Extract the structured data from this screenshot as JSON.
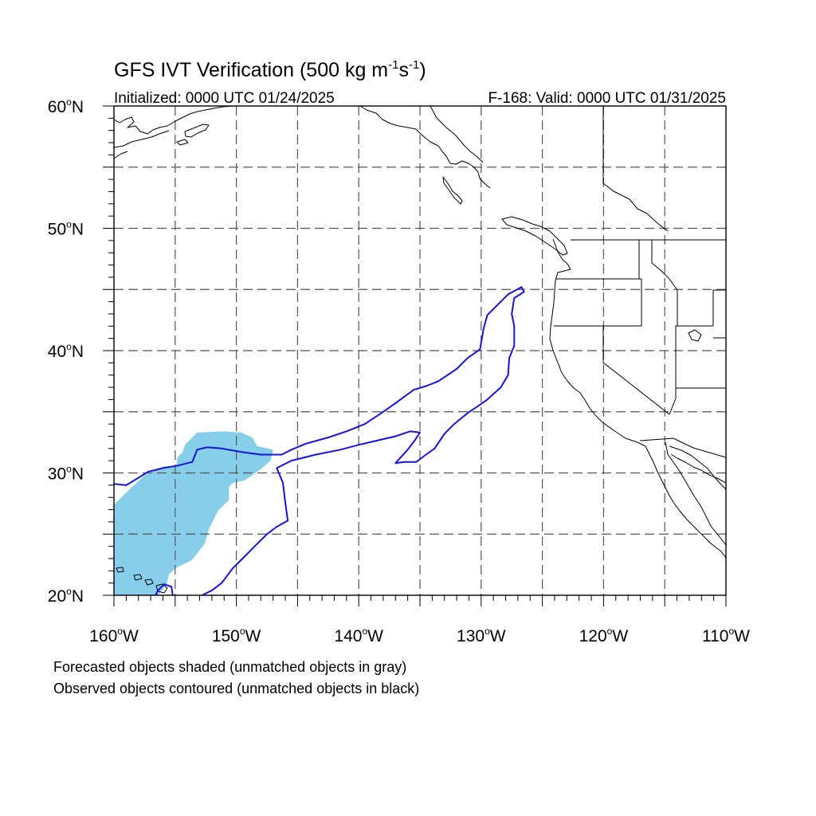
{
  "title": {
    "main": "GFS IVT Verification (500 kg m",
    "sup1": "-1",
    "mid": "s",
    "sup2": "-1",
    "end": ")"
  },
  "subtitle_left": "Initialized: 0000 UTC 01/24/2025",
  "subtitle_right": "F-168: Valid: 0000 UTC 01/31/2025",
  "map": {
    "lon_range": [
      -160,
      -110
    ],
    "lat_range": [
      20,
      60
    ],
    "major_gridlines": {
      "lon": [
        -155,
        -150,
        -145,
        -140,
        -135,
        -130,
        -125,
        -120,
        -115
      ],
      "lat": [
        25,
        30,
        35,
        40,
        45,
        50,
        55
      ]
    },
    "lat_labels": [
      {
        "lat": 60,
        "text": "60",
        "suffix": "N"
      },
      {
        "lat": 50,
        "text": "50",
        "suffix": "N"
      },
      {
        "lat": 40,
        "text": "40",
        "suffix": "N"
      },
      {
        "lat": 30,
        "text": "30",
        "suffix": "N"
      },
      {
        "lat": 20,
        "text": "20",
        "suffix": "N"
      }
    ],
    "lon_labels": [
      {
        "lon": -160,
        "text": "160",
        "suffix": "W"
      },
      {
        "lon": -150,
        "text": "150",
        "suffix": "W"
      },
      {
        "lon": -140,
        "text": "140",
        "suffix": "W"
      },
      {
        "lon": -130,
        "text": "130",
        "suffix": "W"
      },
      {
        "lon": -120,
        "text": "120",
        "suffix": "W"
      },
      {
        "lon": -110,
        "text": "110",
        "suffix": "W"
      }
    ],
    "forecast_object_color": "#87ceeb",
    "observed_object_color": "#1414e0"
  },
  "forecast_object": {
    "color": "#87ceeb",
    "outline": [
      [
        -160,
        20
      ],
      [
        -160,
        27.4
      ],
      [
        -158.8,
        28.6
      ],
      [
        -157.5,
        29.8
      ],
      [
        -156,
        30.5
      ],
      [
        -154.9,
        30.6
      ],
      [
        -154.8,
        31.3
      ],
      [
        -154.4,
        31.7
      ],
      [
        -154.2,
        32.3
      ],
      [
        -153.2,
        33.3
      ],
      [
        -151,
        33.4
      ],
      [
        -149.6,
        33.3
      ],
      [
        -148.7,
        32.9
      ],
      [
        -148.3,
        32.2
      ],
      [
        -147,
        31.9
      ],
      [
        -147.2,
        31.0
      ],
      [
        -148.0,
        30.3
      ],
      [
        -149.3,
        29.4
      ],
      [
        -150.2,
        29.2
      ],
      [
        -150.6,
        28.9
      ],
      [
        -150.6,
        27.8
      ],
      [
        -151.5,
        26.9
      ],
      [
        -152.2,
        25.5
      ],
      [
        -152.6,
        24.2
      ],
      [
        -153.6,
        22.9
      ],
      [
        -155.0,
        22.2
      ],
      [
        -155.5,
        21.7
      ],
      [
        -155.7,
        20.9
      ],
      [
        -156.4,
        20.0
      ]
    ]
  },
  "observed_object": {
    "color": "#1414e0",
    "outline": [
      [
        -160,
        29.1
      ],
      [
        -159.0,
        29.0
      ],
      [
        -158.0,
        29.6
      ],
      [
        -157.2,
        30.1
      ],
      [
        -156.0,
        30.4
      ],
      [
        -154.8,
        30.6
      ],
      [
        -153.6,
        30.9
      ],
      [
        -153.2,
        31.9
      ],
      [
        -152.4,
        32.1
      ],
      [
        -151.2,
        32.0
      ],
      [
        -149.5,
        31.7
      ],
      [
        -148.0,
        31.5
      ],
      [
        -146.3,
        31.5
      ],
      [
        -145.5,
        31.9
      ],
      [
        -144.3,
        32.4
      ],
      [
        -142.5,
        32.9
      ],
      [
        -141.0,
        33.4
      ],
      [
        -139.5,
        34.0
      ],
      [
        -138.0,
        35.0
      ],
      [
        -137.0,
        35.7
      ],
      [
        -135.5,
        36.8
      ],
      [
        -134.5,
        37.1
      ],
      [
        -133.5,
        37.5
      ],
      [
        -132.0,
        38.5
      ],
      [
        -131.1,
        39.4
      ],
      [
        -130.1,
        40.1
      ],
      [
        -129.8,
        41.8
      ],
      [
        -129.5,
        42.9
      ],
      [
        -128.6,
        43.8
      ],
      [
        -127.8,
        44.6
      ],
      [
        -126.7,
        45.2
      ],
      [
        -126.5,
        44.8
      ],
      [
        -127.3,
        44.3
      ],
      [
        -127.5,
        43.0
      ],
      [
        -127.3,
        42.0
      ],
      [
        -127.3,
        40.4
      ],
      [
        -127.7,
        39.4
      ],
      [
        -127.8,
        38.0
      ],
      [
        -128.4,
        37.0
      ],
      [
        -129.5,
        36.0
      ],
      [
        -130.2,
        35.5
      ],
      [
        -131.1,
        34.9
      ],
      [
        -132.2,
        34.0
      ],
      [
        -133.0,
        33.2
      ],
      [
        -133.8,
        32.0
      ],
      [
        -134.5,
        31.5
      ],
      [
        -135.3,
        30.9
      ],
      [
        -136.3,
        30.9
      ],
      [
        -137.0,
        30.8
      ],
      [
        -136.0,
        31.9
      ],
      [
        -135.4,
        32.7
      ],
      [
        -135.0,
        33.3
      ],
      [
        -135.8,
        33.4
      ],
      [
        -137.0,
        33.0
      ],
      [
        -138.3,
        32.7
      ],
      [
        -140.0,
        32.3
      ],
      [
        -141.5,
        31.9
      ],
      [
        -143.5,
        31.5
      ],
      [
        -145.5,
        31.0
      ],
      [
        -146.7,
        30.4
      ],
      [
        -146.2,
        29.2
      ],
      [
        -146.0,
        27.6
      ],
      [
        -145.8,
        26.1
      ],
      [
        -146.7,
        25.6
      ],
      [
        -147.5,
        25.0
      ],
      [
        -148.5,
        24.0
      ],
      [
        -149.5,
        23.0
      ],
      [
        -150.3,
        22.2
      ],
      [
        -151.2,
        21.0
      ],
      [
        -152.0,
        20.4
      ],
      [
        -152.8,
        20.0
      ]
    ],
    "fragment": [
      [
        -155.2,
        20.0
      ],
      [
        -155.3,
        20.7
      ],
      [
        -155.9,
        20.9
      ],
      [
        -156.4,
        20.4
      ],
      [
        -156.6,
        20.0
      ]
    ]
  },
  "caption_line1": "Forecasted objects shaded (unmatched objects in gray)",
  "caption_line2": "Observed objects contoured (unmatched objects in black)"
}
